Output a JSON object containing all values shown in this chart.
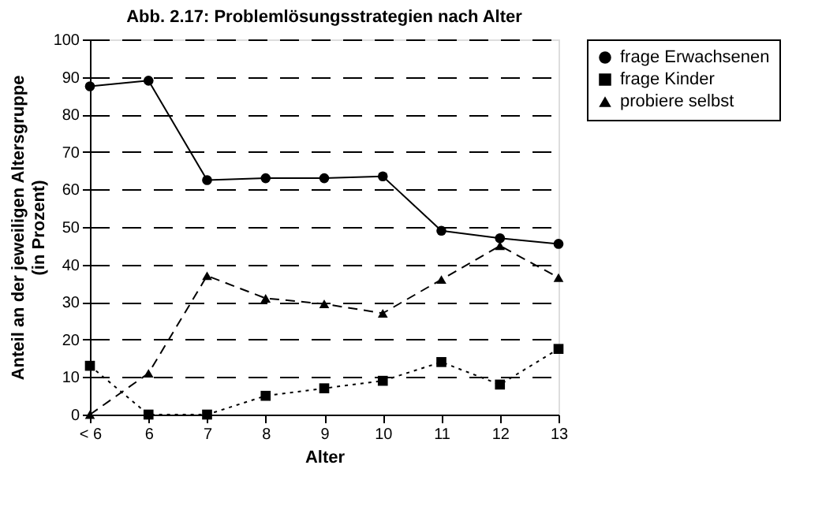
{
  "chart_data": {
    "type": "line",
    "title": "Abb. 2.17: Problemlösungsstrategien nach Alter",
    "xlabel": "Alter",
    "ylabel": "Anteil an der jeweiligen Altersgruppe (in Prozent)",
    "categories": [
      "< 6",
      "6",
      "7",
      "8",
      "9",
      "10",
      "11",
      "12",
      "13"
    ],
    "series": [
      {
        "name": "frage Erwachsenen",
        "color": "#000000",
        "marker": "circle",
        "line_style": "solid",
        "values": [
          87.5,
          89,
          62.5,
          63,
          63,
          63.5,
          49,
          47,
          45.5
        ]
      },
      {
        "name": "frage Kinder",
        "color": "#000000",
        "marker": "square",
        "line_style": "dotted",
        "values": [
          13,
          0,
          0,
          5,
          7,
          9,
          14,
          8,
          17.5
        ]
      },
      {
        "name": "probiere selbst",
        "color": "#000000",
        "marker": "triangle",
        "line_style": "dashed",
        "values": [
          0,
          11,
          37,
          31,
          29.5,
          27,
          36,
          45,
          36.5
        ]
      }
    ],
    "ylim": [
      0,
      100
    ],
    "yticks": [
      0,
      10,
      20,
      30,
      40,
      50,
      60,
      70,
      80,
      90,
      100
    ],
    "grid": "y",
    "legend": "right"
  }
}
